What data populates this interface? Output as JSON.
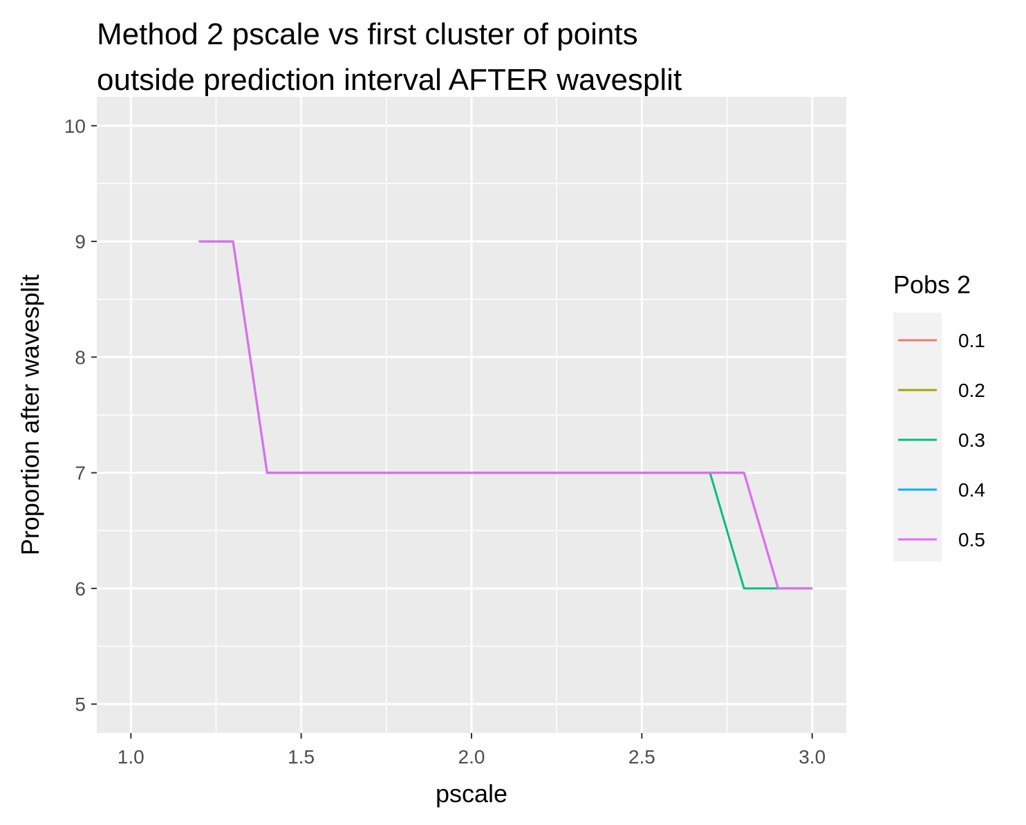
{
  "chart_data": {
    "type": "line",
    "title": "Method 2 pscale vs first cluster of points outside prediction interval AFTER wavesplit",
    "title_lines": [
      "Method 2 pscale vs first cluster of points",
      "outside prediction interval AFTER wavesplit"
    ],
    "xlabel": "pscale",
    "ylabel": "Proportion after wavesplit",
    "xlim": [
      0.9,
      3.1
    ],
    "ylim": [
      4.75,
      10.25
    ],
    "x_ticks": [
      1.0,
      1.5,
      2.0,
      2.5,
      3.0
    ],
    "x_tick_labels": [
      "1.0",
      "1.5",
      "2.0",
      "2.5",
      "3.0"
    ],
    "y_ticks": [
      5,
      6,
      7,
      8,
      9,
      10
    ],
    "y_tick_labels": [
      "5",
      "6",
      "7",
      "8",
      "9",
      "10"
    ],
    "grid": true,
    "legend": {
      "title": "Pobs 2",
      "position": "right"
    },
    "series": [
      {
        "name": "0.1",
        "color": "#F8766D",
        "x": [
          1.2,
          1.3,
          1.4,
          1.5,
          1.6,
          1.7,
          1.8,
          1.9,
          2.0,
          2.1,
          2.2,
          2.3,
          2.4,
          2.5,
          2.6,
          2.7,
          2.8,
          2.9,
          3.0
        ],
        "y": [
          9,
          9,
          7,
          7,
          7,
          7,
          7,
          7,
          7,
          7,
          7,
          7,
          7,
          7,
          7,
          7,
          7,
          6,
          6
        ]
      },
      {
        "name": "0.2",
        "color": "#A3A500",
        "x": [
          1.2,
          1.3,
          1.4,
          1.5,
          1.6,
          1.7,
          1.8,
          1.9,
          2.0,
          2.1,
          2.2,
          2.3,
          2.4,
          2.5,
          2.6,
          2.7,
          2.8,
          2.9,
          3.0
        ],
        "y": [
          9,
          9,
          7,
          7,
          7,
          7,
          7,
          7,
          7,
          7,
          7,
          7,
          7,
          7,
          7,
          7,
          7,
          6,
          6
        ]
      },
      {
        "name": "0.3",
        "color": "#00BF7D",
        "x": [
          1.2,
          1.3,
          1.4,
          1.5,
          1.6,
          1.7,
          1.8,
          1.9,
          2.0,
          2.1,
          2.2,
          2.3,
          2.4,
          2.5,
          2.6,
          2.7,
          2.8,
          2.9,
          3.0
        ],
        "y": [
          9,
          9,
          7,
          7,
          7,
          7,
          7,
          7,
          7,
          7,
          7,
          7,
          7,
          7,
          7,
          7,
          6,
          6,
          6
        ]
      },
      {
        "name": "0.4",
        "color": "#00B0F6",
        "x": [
          1.2,
          1.3,
          1.4,
          1.5,
          1.6,
          1.7,
          1.8,
          1.9,
          2.0,
          2.1,
          2.2,
          2.3,
          2.4,
          2.5,
          2.6,
          2.7,
          2.8,
          2.9,
          3.0
        ],
        "y": [
          9,
          9,
          7,
          7,
          7,
          7,
          7,
          7,
          7,
          7,
          7,
          7,
          7,
          7,
          7,
          7,
          7,
          6,
          6
        ]
      },
      {
        "name": "0.5",
        "color": "#E76BF3",
        "x": [
          1.2,
          1.3,
          1.4,
          1.5,
          1.6,
          1.7,
          1.8,
          1.9,
          2.0,
          2.1,
          2.2,
          2.3,
          2.4,
          2.5,
          2.6,
          2.7,
          2.8,
          2.9,
          3.0
        ],
        "y": [
          9,
          9,
          7,
          7,
          7,
          7,
          7,
          7,
          7,
          7,
          7,
          7,
          7,
          7,
          7,
          7,
          7,
          6,
          6
        ]
      }
    ],
    "colors": {
      "panel_background": "#EBEBEB",
      "grid_line": "#FFFFFF",
      "tick_mark": "#333333",
      "legend_key_background": "#F2F2F2"
    }
  }
}
